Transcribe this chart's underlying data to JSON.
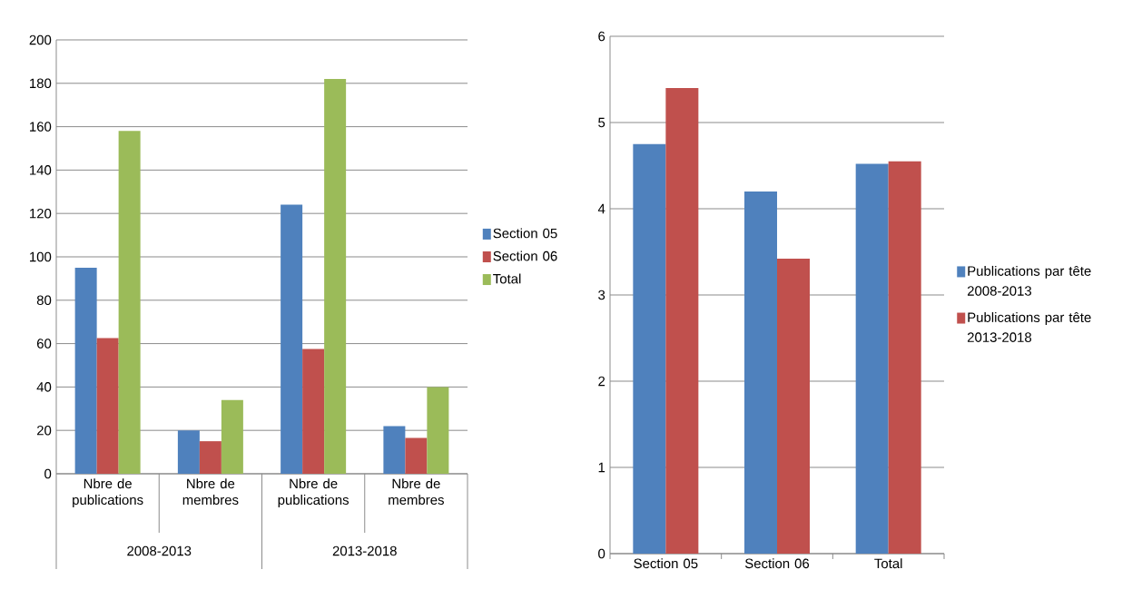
{
  "chart_data": [
    {
      "type": "bar",
      "categories": [
        "Nbre de publications",
        "Nbre de membres",
        "Nbre de publications",
        "Nbre de membres"
      ],
      "series": [
        {
          "name": "Section 05",
          "color": "#4f81bd",
          "values": [
            95,
            20,
            124,
            22
          ]
        },
        {
          "name": "Section 06",
          "color": "#c0504d",
          "values": [
            62.5,
            15,
            57.5,
            16.5
          ]
        },
        {
          "name": "Total",
          "color": "#9bbb59",
          "values": [
            158,
            34,
            182,
            40
          ]
        }
      ],
      "ylim": [
        0,
        200
      ],
      "yticks": [
        0,
        20,
        40,
        60,
        80,
        100,
        120,
        140,
        160,
        180,
        200
      ],
      "grid": "y",
      "legend": "right",
      "annotations": [
        "2008-2013",
        "2013-2018"
      ]
    },
    {
      "type": "bar",
      "categories": [
        "Section 05",
        "Section 06",
        "Total"
      ],
      "series": [
        {
          "name": "Publications par tête 2008-2013",
          "color": "#4f81bd",
          "values": [
            4.75,
            4.2,
            4.52
          ]
        },
        {
          "name": "Publications par tête 2013-2018",
          "color": "#c0504d",
          "values": [
            5.4,
            3.42,
            4.55
          ]
        }
      ],
      "ylim": [
        0,
        6
      ],
      "yticks": [
        0,
        1,
        2,
        3,
        4,
        5,
        6
      ],
      "grid": "y",
      "legend": "right"
    }
  ]
}
